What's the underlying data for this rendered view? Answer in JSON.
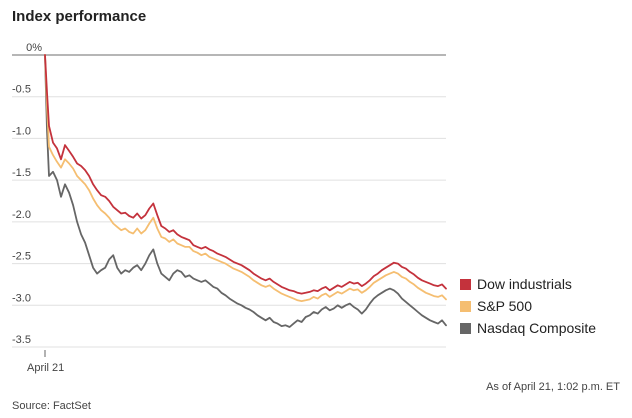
{
  "chart_data": {
    "type": "line",
    "title": "Index performance",
    "x_tick_labels": [
      "April 21"
    ],
    "y_ticks": [
      0,
      -0.5,
      -1.0,
      -1.5,
      -2.0,
      -2.5,
      -3.0,
      -3.5
    ],
    "y_tick_labels": [
      "0%",
      "-0.5",
      "-1.0",
      "-1.5",
      "-2.0",
      "-2.5",
      "-3.0",
      "-3.5"
    ],
    "ylim": [
      -3.5,
      0
    ],
    "x_range": [
      0,
      100
    ],
    "grid": true,
    "legend_position": "bottom-right",
    "note": "As of April 21, 1:02 p.m. ET",
    "source": "Source: FactSet",
    "series": [
      {
        "name": "Dow industrials",
        "color": "#c4323c",
        "x": [
          0,
          0.5,
          1,
          2,
          3,
          4,
          5,
          6,
          7,
          8,
          9,
          10,
          11,
          12,
          13,
          14,
          15,
          16,
          17,
          18,
          19,
          20,
          21,
          22,
          23,
          24,
          25,
          26,
          27,
          28,
          29,
          30,
          31,
          32,
          33,
          34,
          35,
          36,
          37,
          38,
          39,
          40,
          41,
          42,
          43,
          44,
          45,
          46,
          47,
          48,
          49,
          50,
          51,
          52,
          53,
          54,
          55,
          56,
          57,
          58,
          59,
          60,
          61,
          62,
          63,
          64,
          65,
          66,
          67,
          68,
          69,
          70,
          71,
          72,
          73,
          74,
          75,
          76,
          77,
          78,
          79,
          80,
          81,
          82,
          83,
          84,
          85,
          86,
          87,
          88,
          89,
          90,
          91,
          92,
          93,
          94,
          95,
          96,
          97,
          98,
          99,
          100
        ],
        "values": [
          0,
          -0.45,
          -0.85,
          -1.05,
          -1.12,
          -1.25,
          -1.08,
          -1.15,
          -1.22,
          -1.3,
          -1.33,
          -1.38,
          -1.45,
          -1.55,
          -1.62,
          -1.68,
          -1.7,
          -1.75,
          -1.82,
          -1.86,
          -1.9,
          -1.89,
          -1.93,
          -1.95,
          -1.9,
          -1.96,
          -1.92,
          -1.84,
          -1.78,
          -1.92,
          -2.05,
          -2.08,
          -2.12,
          -2.1,
          -2.15,
          -2.18,
          -2.2,
          -2.22,
          -2.28,
          -2.3,
          -2.32,
          -2.3,
          -2.33,
          -2.35,
          -2.38,
          -2.4,
          -2.42,
          -2.45,
          -2.48,
          -2.5,
          -2.52,
          -2.55,
          -2.58,
          -2.62,
          -2.65,
          -2.68,
          -2.7,
          -2.68,
          -2.72,
          -2.75,
          -2.78,
          -2.8,
          -2.82,
          -2.83,
          -2.85,
          -2.86,
          -2.85,
          -2.84,
          -2.82,
          -2.83,
          -2.8,
          -2.78,
          -2.82,
          -2.79,
          -2.76,
          -2.78,
          -2.75,
          -2.72,
          -2.74,
          -2.73,
          -2.77,
          -2.74,
          -2.7,
          -2.65,
          -2.62,
          -2.58,
          -2.55,
          -2.52,
          -2.49,
          -2.5,
          -2.54,
          -2.56,
          -2.6,
          -2.63,
          -2.67,
          -2.7,
          -2.72,
          -2.74,
          -2.76,
          -2.77,
          -2.75,
          -2.8
        ]
      },
      {
        "name": "S&P 500",
        "color": "#f5be71",
        "x": [
          0,
          0.5,
          1,
          2,
          3,
          4,
          5,
          6,
          7,
          8,
          9,
          10,
          11,
          12,
          13,
          14,
          15,
          16,
          17,
          18,
          19,
          20,
          21,
          22,
          23,
          24,
          25,
          26,
          27,
          28,
          29,
          30,
          31,
          32,
          33,
          34,
          35,
          36,
          37,
          38,
          39,
          40,
          41,
          42,
          43,
          44,
          45,
          46,
          47,
          48,
          49,
          50,
          51,
          52,
          53,
          54,
          55,
          56,
          57,
          58,
          59,
          60,
          61,
          62,
          63,
          64,
          65,
          66,
          67,
          68,
          69,
          70,
          71,
          72,
          73,
          74,
          75,
          76,
          77,
          78,
          79,
          80,
          81,
          82,
          83,
          84,
          85,
          86,
          87,
          88,
          89,
          90,
          91,
          92,
          93,
          94,
          95,
          96,
          97,
          98,
          99,
          100
        ],
        "values": [
          0,
          -0.6,
          -1.1,
          -1.2,
          -1.28,
          -1.35,
          -1.25,
          -1.3,
          -1.36,
          -1.45,
          -1.5,
          -1.55,
          -1.62,
          -1.72,
          -1.8,
          -1.86,
          -1.9,
          -1.95,
          -2.02,
          -2.06,
          -2.1,
          -2.08,
          -2.12,
          -2.14,
          -2.08,
          -2.14,
          -2.1,
          -2.02,
          -1.95,
          -2.08,
          -2.18,
          -2.2,
          -2.24,
          -2.21,
          -2.26,
          -2.28,
          -2.3,
          -2.3,
          -2.35,
          -2.37,
          -2.4,
          -2.38,
          -2.42,
          -2.44,
          -2.46,
          -2.48,
          -2.5,
          -2.53,
          -2.56,
          -2.58,
          -2.6,
          -2.63,
          -2.66,
          -2.7,
          -2.73,
          -2.76,
          -2.78,
          -2.76,
          -2.8,
          -2.83,
          -2.86,
          -2.88,
          -2.9,
          -2.92,
          -2.94,
          -2.95,
          -2.94,
          -2.93,
          -2.9,
          -2.92,
          -2.88,
          -2.86,
          -2.9,
          -2.87,
          -2.84,
          -2.86,
          -2.83,
          -2.8,
          -2.82,
          -2.81,
          -2.85,
          -2.82,
          -2.78,
          -2.73,
          -2.7,
          -2.67,
          -2.64,
          -2.62,
          -2.6,
          -2.62,
          -2.66,
          -2.68,
          -2.72,
          -2.75,
          -2.79,
          -2.82,
          -2.85,
          -2.87,
          -2.89,
          -2.9,
          -2.88,
          -2.93
        ]
      },
      {
        "name": "Nasdaq Composite",
        "color": "#666666",
        "x": [
          0,
          0.5,
          1,
          2,
          3,
          4,
          5,
          6,
          7,
          8,
          9,
          10,
          11,
          12,
          13,
          14,
          15,
          16,
          17,
          18,
          19,
          20,
          21,
          22,
          23,
          24,
          25,
          26,
          27,
          28,
          29,
          30,
          31,
          32,
          33,
          34,
          35,
          36,
          37,
          38,
          39,
          40,
          41,
          42,
          43,
          44,
          45,
          46,
          47,
          48,
          49,
          50,
          51,
          52,
          53,
          54,
          55,
          56,
          57,
          58,
          59,
          60,
          61,
          62,
          63,
          64,
          65,
          66,
          67,
          68,
          69,
          70,
          71,
          72,
          73,
          74,
          75,
          76,
          77,
          78,
          79,
          80,
          81,
          82,
          83,
          84,
          85,
          86,
          87,
          88,
          89,
          90,
          91,
          92,
          93,
          94,
          95,
          96,
          97,
          98,
          99,
          100
        ],
        "values": [
          0,
          -0.9,
          -1.45,
          -1.4,
          -1.5,
          -1.7,
          -1.55,
          -1.65,
          -1.8,
          -2.0,
          -2.15,
          -2.25,
          -2.4,
          -2.55,
          -2.62,
          -2.58,
          -2.55,
          -2.45,
          -2.4,
          -2.55,
          -2.62,
          -2.58,
          -2.6,
          -2.55,
          -2.52,
          -2.58,
          -2.5,
          -2.4,
          -2.33,
          -2.5,
          -2.62,
          -2.66,
          -2.7,
          -2.62,
          -2.58,
          -2.6,
          -2.66,
          -2.64,
          -2.68,
          -2.7,
          -2.72,
          -2.7,
          -2.74,
          -2.78,
          -2.8,
          -2.85,
          -2.88,
          -2.92,
          -2.95,
          -2.98,
          -3.0,
          -3.03,
          -3.05,
          -3.08,
          -3.12,
          -3.15,
          -3.18,
          -3.15,
          -3.2,
          -3.22,
          -3.25,
          -3.24,
          -3.26,
          -3.22,
          -3.18,
          -3.2,
          -3.14,
          -3.12,
          -3.08,
          -3.1,
          -3.05,
          -3.02,
          -3.06,
          -3.04,
          -3.0,
          -3.03,
          -3.0,
          -2.98,
          -3.02,
          -3.05,
          -3.1,
          -3.05,
          -2.98,
          -2.92,
          -2.88,
          -2.85,
          -2.82,
          -2.8,
          -2.82,
          -2.86,
          -2.92,
          -2.96,
          -3.0,
          -3.04,
          -3.08,
          -3.12,
          -3.15,
          -3.18,
          -3.2,
          -3.22,
          -3.18,
          -3.24
        ]
      }
    ]
  }
}
